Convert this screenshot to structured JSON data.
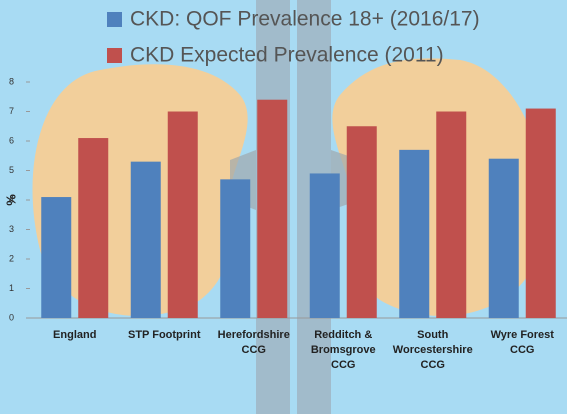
{
  "chart_data": {
    "type": "bar",
    "categories": [
      "England",
      "STP Footprint",
      "Herefordshire CCG",
      "Redditch & Bromsgrove CCG",
      "South Worcestershire CCG",
      "Wyre Forest CCG"
    ],
    "series": [
      {
        "name": "CKD: QOF Prevalence 18+ (2016/17)",
        "color": "#4f81bd",
        "values": [
          4.1,
          5.3,
          4.7,
          4.9,
          5.7,
          5.4
        ]
      },
      {
        "name": "CKD Expected Prevalence (2011)",
        "color": "#c0504d",
        "values": [
          6.1,
          7.0,
          7.4,
          6.5,
          7.0,
          7.1
        ]
      }
    ],
    "ylabel": "%",
    "ylim": [
      0,
      8
    ],
    "yticks": [
      0,
      1,
      2,
      3,
      4,
      5,
      6,
      7,
      8
    ],
    "grid": false
  }
}
